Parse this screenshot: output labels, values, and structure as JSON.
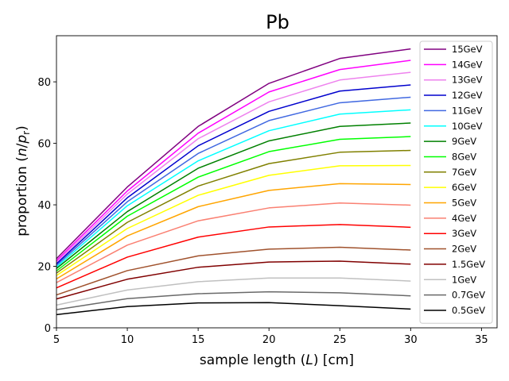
{
  "chart_data": {
    "type": "line",
    "title": "Pb",
    "xlabel_text": "sample length (",
    "xlabel_italic": "L",
    "xlabel_after": ") [cm]",
    "ylabel_text": "proportion (",
    "ylabel_italic_n": "n",
    "ylabel_slash": "/",
    "ylabel_italic_p": "p",
    "ylabel_sub": "r",
    "ylabel_after": ")",
    "xlim": [
      5,
      36.1
    ],
    "ylim": [
      0,
      95
    ],
    "xticks": [
      5,
      10,
      15,
      20,
      25,
      30,
      35
    ],
    "yticks": [
      0,
      20,
      40,
      60,
      80
    ],
    "legend_position": "upper-right",
    "x": [
      5,
      10,
      15,
      20,
      25,
      30
    ],
    "series": [
      {
        "name": "15GeV",
        "color": "#800080",
        "values": [
          22.5,
          45.8,
          65.5,
          79.5,
          87.6,
          90.7
        ]
      },
      {
        "name": "14GeV",
        "color": "#ff00ff",
        "values": [
          21.8,
          44.5,
          63.3,
          76.7,
          84.0,
          87.0
        ]
      },
      {
        "name": "13GeV",
        "color": "#ee82ee",
        "values": [
          21.2,
          43.5,
          61.5,
          73.5,
          80.6,
          83.1
        ]
      },
      {
        "name": "12GeV",
        "color": "#0000cd",
        "values": [
          20.8,
          42.3,
          59.2,
          70.4,
          77.0,
          79.0
        ]
      },
      {
        "name": "11GeV",
        "color": "#4169e1",
        "values": [
          20.3,
          41.0,
          56.7,
          67.4,
          73.2,
          75.0
        ]
      },
      {
        "name": "10GeV",
        "color": "#00ffff",
        "values": [
          19.8,
          39.7,
          54.3,
          64.1,
          69.5,
          70.9
        ]
      },
      {
        "name": "9GeV",
        "color": "#008000",
        "values": [
          19.3,
          37.8,
          51.9,
          60.8,
          65.5,
          66.6
        ]
      },
      {
        "name": "8GeV",
        "color": "#00ff00",
        "values": [
          18.5,
          36.3,
          49.0,
          57.3,
          61.3,
          62.2
        ]
      },
      {
        "name": "7GeV",
        "color": "#808000",
        "values": [
          17.8,
          34.3,
          46.1,
          53.4,
          57.1,
          57.7
        ]
      },
      {
        "name": "6GeV",
        "color": "#ffff00",
        "values": [
          17.0,
          32.3,
          43.1,
          49.6,
          52.7,
          52.8
        ]
      },
      {
        "name": "5GeV",
        "color": "#ffa500",
        "values": [
          15.9,
          29.9,
          39.4,
          44.7,
          46.9,
          46.6
        ]
      },
      {
        "name": "4GeV",
        "color": "#fa8072",
        "values": [
          14.7,
          26.9,
          34.8,
          39.0,
          40.6,
          39.9
        ]
      },
      {
        "name": "3GeV",
        "color": "#ff0000",
        "values": [
          13.0,
          23.0,
          29.5,
          32.8,
          33.6,
          32.7
        ]
      },
      {
        "name": "2GeV",
        "color": "#a0522d",
        "values": [
          10.7,
          18.6,
          23.4,
          25.6,
          26.2,
          25.3
        ]
      },
      {
        "name": "1.5GeV",
        "color": "#800000",
        "values": [
          9.4,
          15.8,
          19.7,
          21.4,
          21.7,
          20.7
        ]
      },
      {
        "name": "1GeV",
        "color": "#c0c0c0",
        "values": [
          7.4,
          12.3,
          15.0,
          16.2,
          16.2,
          15.2
        ]
      },
      {
        "name": "0.7GeV",
        "color": "#696969",
        "values": [
          5.9,
          9.5,
          11.1,
          11.7,
          11.4,
          10.4
        ]
      },
      {
        "name": "0.5GeV",
        "color": "#000000",
        "values": [
          4.3,
          6.9,
          8.1,
          8.2,
          7.2,
          6.1
        ]
      }
    ]
  }
}
